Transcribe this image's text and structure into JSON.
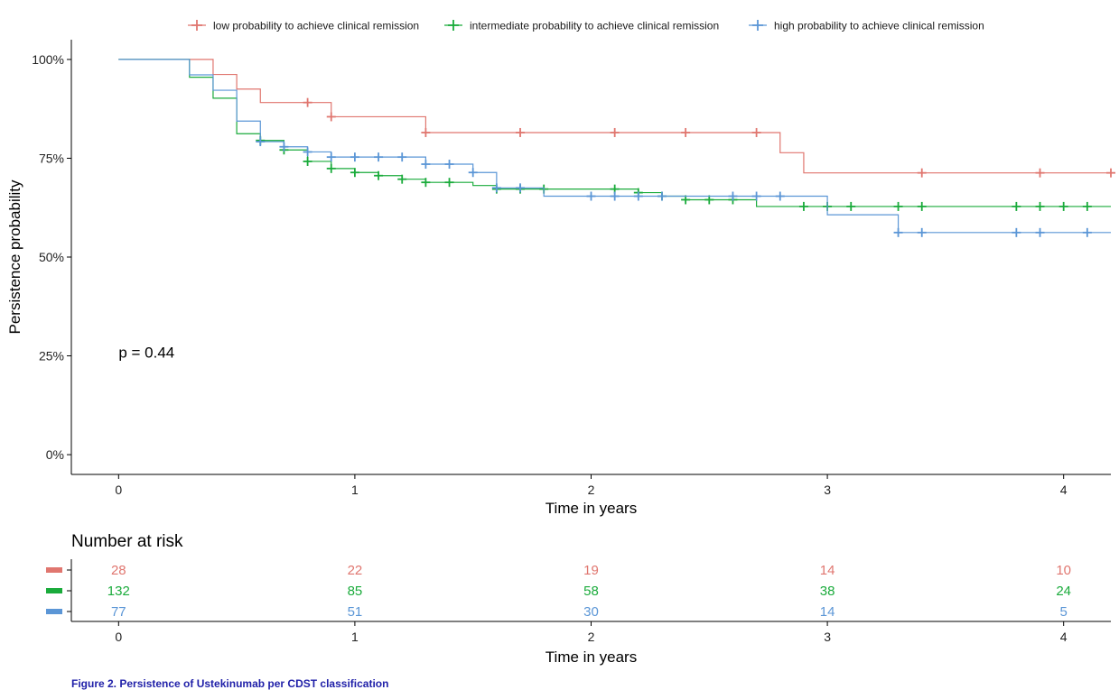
{
  "chart_data": {
    "type": "line",
    "subtype": "kaplan-meier",
    "xlabel": "Time in years",
    "ylabel": "Persistence probability",
    "xlim": [
      -0.2,
      4.2
    ],
    "ylim": [
      -0.05,
      1.05
    ],
    "x_ticks": [
      0,
      1,
      2,
      3,
      4
    ],
    "x_tick_labels": [
      "0",
      "1",
      "2",
      "3",
      "4"
    ],
    "y_ticks": [
      0,
      0.25,
      0.5,
      0.75,
      1.0
    ],
    "y_tick_labels": [
      "0%",
      "25%",
      "50%",
      "75%",
      "100%"
    ],
    "grid": false,
    "legend_position": "top",
    "annotation": "p = 0.44",
    "annotation_pos": {
      "x": 0.0,
      "y": 0.245
    },
    "series": [
      {
        "name": "low probability to achieve clinical remission",
        "color": "#e0766f",
        "steps": [
          [
            0,
            1.0
          ],
          [
            0.4,
            0.962
          ],
          [
            0.5,
            0.925
          ],
          [
            0.6,
            0.891
          ],
          [
            0.9,
            0.855
          ],
          [
            1.3,
            0.815
          ],
          [
            2.8,
            0.764
          ],
          [
            2.9,
            0.713
          ],
          [
            4.2,
            0.713
          ]
        ],
        "censor_x": [
          0.8,
          0.9,
          1.3,
          1.7,
          2.1,
          2.4,
          2.7,
          3.4,
          3.9,
          4.2
        ]
      },
      {
        "name": "intermediate probability to achieve clinical remission",
        "color": "#1aab3b",
        "steps": [
          [
            0,
            1.0
          ],
          [
            0.3,
            0.955
          ],
          [
            0.4,
            0.902
          ],
          [
            0.5,
            0.812
          ],
          [
            0.6,
            0.795
          ],
          [
            0.7,
            0.771
          ],
          [
            0.8,
            0.742
          ],
          [
            0.9,
            0.724
          ],
          [
            1.0,
            0.714
          ],
          [
            1.1,
            0.706
          ],
          [
            1.2,
            0.697
          ],
          [
            1.3,
            0.689
          ],
          [
            1.5,
            0.681
          ],
          [
            1.6,
            0.672
          ],
          [
            2.2,
            0.663
          ],
          [
            2.3,
            0.654
          ],
          [
            2.4,
            0.645
          ],
          [
            2.7,
            0.628
          ],
          [
            4.2,
            0.628
          ]
        ],
        "censor_x": [
          0.6,
          0.7,
          0.8,
          0.9,
          1.0,
          1.1,
          1.2,
          1.3,
          1.4,
          1.6,
          1.7,
          1.8,
          2.1,
          2.2,
          2.3,
          2.4,
          2.5,
          2.6,
          2.9,
          3.0,
          3.1,
          3.3,
          3.4,
          3.8,
          3.9,
          4.0,
          4.1
        ]
      },
      {
        "name": "high probability to achieve clinical remission",
        "color": "#5b96d6",
        "steps": [
          [
            0,
            1.0
          ],
          [
            0.3,
            0.961
          ],
          [
            0.4,
            0.922
          ],
          [
            0.5,
            0.844
          ],
          [
            0.6,
            0.792
          ],
          [
            0.7,
            0.779
          ],
          [
            0.8,
            0.766
          ],
          [
            0.9,
            0.753
          ],
          [
            1.3,
            0.735
          ],
          [
            1.5,
            0.714
          ],
          [
            1.6,
            0.675
          ],
          [
            1.8,
            0.654
          ],
          [
            3.0,
            0.607
          ],
          [
            3.3,
            0.562
          ],
          [
            4.2,
            0.562
          ]
        ],
        "censor_x": [
          0.6,
          0.7,
          0.8,
          0.9,
          1.0,
          1.1,
          1.2,
          1.3,
          1.4,
          1.5,
          1.6,
          1.7,
          2.0,
          2.1,
          2.2,
          2.3,
          2.6,
          2.7,
          2.8,
          3.3,
          3.4,
          3.8,
          3.9,
          4.1
        ]
      }
    ],
    "risk_table": {
      "title": "Number at risk",
      "xlabel": "Time in years",
      "times": [
        0,
        1,
        2,
        3,
        4
      ],
      "rows": [
        {
          "color": "#e0766f",
          "counts": [
            "28",
            "22",
            "19",
            "14",
            "10"
          ]
        },
        {
          "color": "#1aab3b",
          "counts": [
            "132",
            "85",
            "58",
            "38",
            "24"
          ]
        },
        {
          "color": "#5b96d6",
          "counts": [
            "77",
            "51",
            "30",
            "14",
            "5"
          ]
        }
      ]
    }
  },
  "caption": "Figure 2. Persistence of Ustekinumab per CDST classification"
}
